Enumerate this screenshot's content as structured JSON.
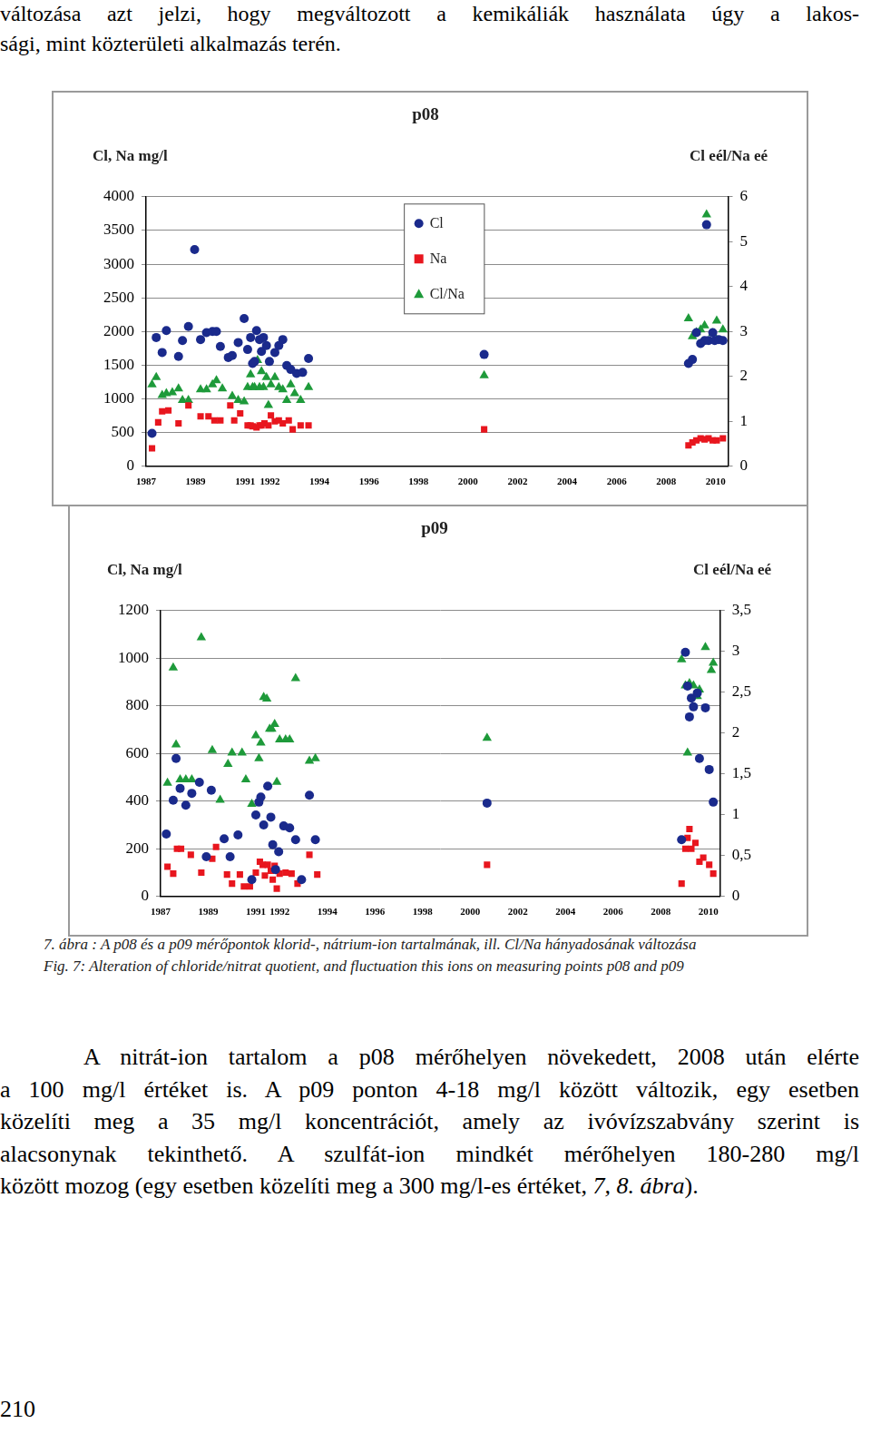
{
  "top_text": [
    "változása azt jelzi, hogy megváltozott a kemikáliák használata úgy a lakos-",
    "sági, mint közterületi alkalmazás terén."
  ],
  "chart_data": [
    {
      "type": "scatter",
      "title": "p08",
      "ylabel": "Cl, Na mg/l",
      "y2label": "Cl eél/Na eé",
      "xlim": [
        1987,
        2010.5
      ],
      "xticks": [
        1987,
        1989,
        1991,
        1992,
        1994,
        1996,
        1998,
        2000,
        2002,
        2004,
        2006,
        2008,
        2010
      ],
      "ylim": [
        0,
        4000
      ],
      "yticks": [
        0,
        500,
        1000,
        1500,
        2000,
        2500,
        3000,
        3500,
        4000
      ],
      "y2lim": [
        0,
        6
      ],
      "y2ticks": [
        0,
        1,
        2,
        3,
        4,
        5,
        6
      ],
      "grid": true,
      "legend": "top",
      "series": [
        {
          "name": "Cl",
          "color": "#1a2a8c",
          "marker": "circle",
          "axis": "y",
          "x": [
            1987.24,
            1987.41,
            1987.65,
            1987.82,
            1988.31,
            1988.47,
            1988.71,
            1988.96,
            1989.2,
            1989.44,
            1989.68,
            1989.84,
            1990.0,
            1990.32,
            1990.48,
            1990.72,
            1990.96,
            1991.1,
            1991.22,
            1991.3,
            1991.38,
            1991.46,
            1991.58,
            1991.66,
            1991.74,
            1991.86,
            1991.98,
            1992.2,
            1992.36,
            1992.52,
            1992.68,
            1992.84,
            1993.08,
            1993.32,
            1993.56,
            2000.65,
            2008.9,
            2009.06,
            2009.22,
            2009.39,
            2009.55,
            2009.63,
            2009.71,
            2009.88,
            2009.96,
            2010.12,
            2010.29
          ],
          "values": [
            489,
            1911,
            1689,
            2015,
            1630,
            1867,
            2074,
            3215,
            1881,
            1985,
            2000,
            2000,
            1778,
            1615,
            1644,
            1837,
            2193,
            1733,
            1911,
            1526,
            1555,
            2015,
            1881,
            1704,
            1911,
            1793,
            1555,
            1689,
            1793,
            1881,
            1496,
            1437,
            1378,
            1393,
            1600,
            1659,
            1526,
            1585,
            1985,
            1822,
            1867,
            3585,
            1867,
            1985,
            1867,
            1881,
            1867
          ]
        },
        {
          "name": "Na",
          "color": "#e8161e",
          "marker": "square",
          "axis": "y",
          "x": [
            1987.24,
            1987.49,
            1987.65,
            1987.9,
            1988.31,
            1988.71,
            1989.2,
            1989.52,
            1989.76,
            1990.0,
            1990.4,
            1990.56,
            1990.8,
            1991.1,
            1991.22,
            1991.3,
            1991.46,
            1991.58,
            1991.66,
            1991.78,
            1991.94,
            1992.04,
            1992.2,
            1992.36,
            1992.52,
            1992.76,
            1992.92,
            1993.24,
            1993.56,
            2000.65,
            2008.9,
            2009.06,
            2009.22,
            2009.39,
            2009.55,
            2009.71,
            2009.88,
            2010.04,
            2010.29
          ],
          "values": [
            267,
            652,
            815,
            830,
            637,
            904,
            741,
            741,
            681,
            681,
            904,
            681,
            785,
            607,
            607,
            593,
            578,
            607,
            607,
            637,
            607,
            755,
            667,
            681,
            637,
            681,
            548,
            607,
            607,
            548,
            311,
            355,
            385,
            415,
            400,
            415,
            385,
            385,
            415
          ]
        },
        {
          "name": "Cl/Na",
          "color": "#1e9a3a",
          "marker": "triangle",
          "axis": "y2",
          "x": [
            1987.24,
            1987.41,
            1987.65,
            1987.82,
            1988.06,
            1988.31,
            1988.47,
            1988.71,
            1989.2,
            1989.44,
            1989.68,
            1989.84,
            1990.08,
            1990.48,
            1990.72,
            1990.96,
            1991.1,
            1991.22,
            1991.3,
            1991.38,
            1991.5,
            1991.58,
            1991.66,
            1991.74,
            1991.86,
            1991.94,
            1992.04,
            1992.2,
            1992.36,
            1992.52,
            1992.68,
            1992.84,
            1993.0,
            1993.24,
            1993.56,
            2000.65,
            2008.9,
            2009.06,
            2009.22,
            2009.39,
            2009.55,
            2009.63,
            2009.88,
            2010.04,
            2010.29
          ],
          "values": [
            1.82,
            1.98,
            1.58,
            1.62,
            1.64,
            1.73,
            1.47,
            1.47,
            1.71,
            1.71,
            1.82,
            1.91,
            1.73,
            1.56,
            1.47,
            1.44,
            1.76,
            2.04,
            1.76,
            1.76,
            2.36,
            1.76,
            2.11,
            1.76,
            1.98,
            1.36,
            1.82,
            1.98,
            1.76,
            1.71,
            1.47,
            1.82,
            1.62,
            1.47,
            1.76,
            2.02,
            3.29,
            2.89,
            2.98,
            3.04,
            3.13,
            5.6,
            2.96,
            3.24,
            3.04
          ]
        }
      ]
    },
    {
      "type": "scatter",
      "title": "p09",
      "ylabel": "Cl, Na mg/l",
      "y2label": "Cl eél/Na eé",
      "xlim": [
        1987,
        2010.5
      ],
      "xticks": [
        1987,
        1989,
        1991,
        1992,
        1994,
        1996,
        1998,
        2000,
        2002,
        2004,
        2006,
        2008,
        2010
      ],
      "ylim": [
        0,
        1200
      ],
      "yticks": [
        0,
        200,
        400,
        600,
        800,
        1000,
        1200
      ],
      "y2lim": [
        0,
        3.5
      ],
      "y2ticks": [
        0,
        {
          "value": 0.5,
          "label": "0,5"
        },
        1,
        {
          "value": 1.5,
          "label": "1,5"
        },
        2,
        {
          "value": 2.5,
          "label": "2,5"
        },
        3,
        {
          "value": 3.5,
          "label": "3,5"
        }
      ],
      "grid": true,
      "series": [
        {
          "name": "Cl",
          "color": "#1a2a8c",
          "marker": "circle",
          "axis": "y",
          "x": [
            1987.24,
            1987.53,
            1987.65,
            1987.82,
            1988.06,
            1988.31,
            1988.63,
            1988.92,
            1989.13,
            1989.67,
            1989.92,
            1990.25,
            1990.83,
            1991.0,
            1991.13,
            1991.21,
            1991.33,
            1991.5,
            1991.63,
            1991.71,
            1991.83,
            1991.96,
            1992.17,
            1992.42,
            1992.67,
            1992.92,
            1993.25,
            1993.5,
            2000.71,
            2008.88,
            2009.04,
            2009.13,
            2009.21,
            2009.29,
            2009.38,
            2009.54,
            2009.63,
            2009.88,
            2010.04,
            2010.21
          ],
          "values": [
            262,
            404,
            579,
            454,
            383,
            433,
            479,
            167,
            446,
            242,
            167,
            258,
            71,
            342,
            396,
            417,
            300,
            463,
            333,
            217,
            113,
            188,
            296,
            288,
            238,
            71,
            425,
            238,
            392,
            238,
            1025,
            883,
            754,
            833,
            796,
            854,
            579,
            792,
            533,
            396
          ]
        },
        {
          "name": "Na",
          "color": "#e8161e",
          "marker": "square",
          "axis": "y",
          "x": [
            1987.29,
            1987.53,
            1987.69,
            1987.86,
            1988.27,
            1988.71,
            1989.17,
            1989.33,
            1989.79,
            1990.0,
            1990.33,
            1990.5,
            1990.75,
            1991.0,
            1991.17,
            1991.29,
            1991.38,
            1991.5,
            1991.63,
            1991.71,
            1991.79,
            1991.88,
            1992.0,
            1992.25,
            1992.5,
            1992.75,
            1993.25,
            1993.58,
            2000.71,
            2008.88,
            2009.04,
            2009.13,
            2009.21,
            2009.29,
            2009.46,
            2009.63,
            2009.79,
            2010.04,
            2010.21
          ],
          "values": [
            125,
            96,
            200,
            200,
            175,
            100,
            158,
            208,
            92,
            54,
            92,
            42,
            42,
            100,
            146,
            133,
            88,
            133,
            108,
            71,
            129,
            33,
            96,
            100,
            96,
            54,
            175,
            92,
            133,
            54,
            200,
            246,
            283,
            200,
            225,
            146,
            163,
            133,
            96
          ]
        },
        {
          "name": "Cl/Na",
          "color": "#1e9a3a",
          "marker": "triangle",
          "axis": "y2",
          "x": [
            1987.29,
            1987.53,
            1987.65,
            1987.82,
            1988.06,
            1988.31,
            1988.71,
            1989.17,
            1989.5,
            1989.83,
            1990.0,
            1990.42,
            1990.58,
            1990.83,
            1991.0,
            1991.13,
            1991.21,
            1991.33,
            1991.46,
            1991.58,
            1991.67,
            1991.79,
            1991.88,
            1992.0,
            1992.25,
            1992.42,
            1992.67,
            1993.25,
            1993.5,
            2000.71,
            2008.88,
            2009.04,
            2009.13,
            2009.21,
            2009.38,
            2009.54,
            2009.63,
            2009.88,
            2010.13,
            2010.21
          ],
          "values": [
            1.39,
            2.8,
            1.86,
            1.43,
            1.43,
            1.43,
            3.17,
            1.79,
            1.18,
            1.62,
            1.76,
            1.76,
            1.43,
            1.13,
            1.97,
            1.69,
            1.88,
            2.44,
            2.42,
            2.05,
            2.05,
            2.11,
            1.4,
            1.92,
            1.92,
            1.92,
            2.67,
            1.66,
            1.69,
            1.94,
            2.9,
            2.58,
            1.76,
            2.61,
            2.58,
            2.45,
            2.53,
            3.05,
            2.77,
            2.86
          ]
        }
      ]
    }
  ],
  "caption_hu": "7. ábra : A p08 és a p09 mérőpontok klorid-, nátrium-ion tartalmának, ill. Cl/Na hányadosának változása",
  "caption_en": "Fig. 7: Alteration of chloride/nitrat quotient, and fluctuation this ions on measuring points p08 and p09",
  "paragraph_lines": [
    "A nitrát-ion tartalom a p08 mérőhelyen növekedett, 2008 után elérte",
    "a 100 mg/l értéket is. A p09 ponton 4-18 mg/l között változik, egy esetben",
    "közelíti meg a 35 mg/l koncentrációt, amely az ivóvízszabvány szerint is",
    "alacsonynak tekinthető. A szulfát-ion mindkét mérőhelyen 180-280 mg/l"
  ],
  "paragraph_end": {
    "text": "között mozog (egy esetben közelíti meg a 300 mg/l-es értéket, ",
    "italic_text": "7, 8. ábra",
    "closing": ")."
  },
  "page_number": "210"
}
